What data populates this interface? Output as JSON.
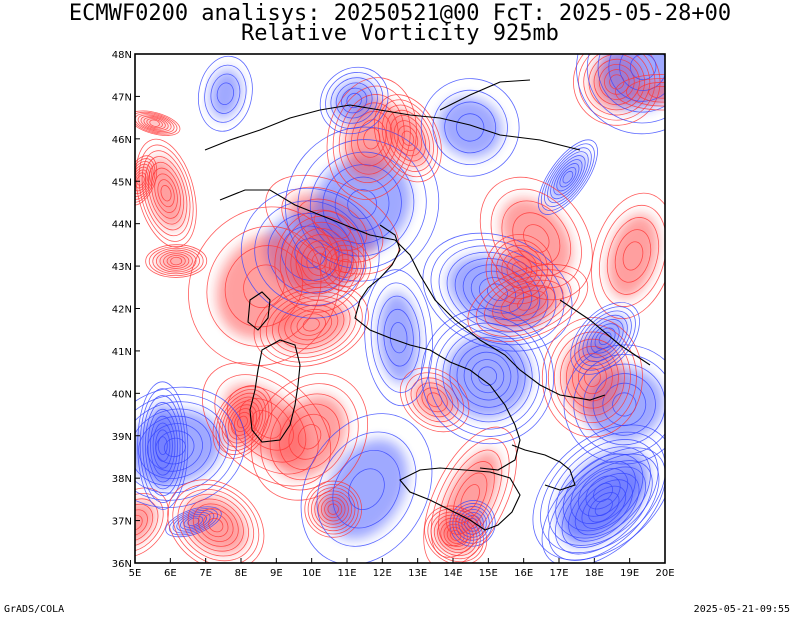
{
  "header": {
    "title_line1": "ECMWF0200 analisys: 20250521@00 FcT: 2025-05-28+00",
    "title_line2": "Relative Vorticity 925mb"
  },
  "map": {
    "lon_labels": [
      "5E",
      "6E",
      "7E",
      "8E",
      "9E",
      "10E",
      "11E",
      "12E",
      "13E",
      "14E",
      "15E",
      "16E",
      "17E",
      "18E",
      "19E",
      "20E"
    ],
    "lat_labels": [
      "36N",
      "37N",
      "38N",
      "39N",
      "40N",
      "41N",
      "42N",
      "43N",
      "44N",
      "45N",
      "46N",
      "47N",
      "48N"
    ],
    "colors": {
      "positive_contour": "#ff3333",
      "negative_contour": "#3344ff",
      "coastline": "#000000"
    }
  },
  "footer": {
    "left": "GrADS/COLA",
    "right": "2025-05-21-09:55"
  }
}
